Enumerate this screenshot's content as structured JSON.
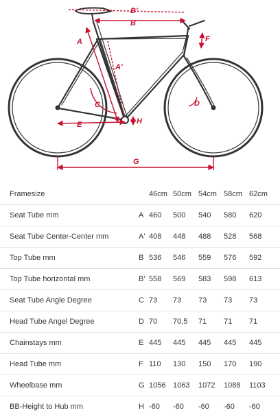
{
  "diagram": {
    "accent_color": "#c8102e",
    "frame_color": "#333333",
    "labels": {
      "A": "A",
      "A_prime": "A'",
      "B": "B",
      "B_prime": "B'",
      "C": "C",
      "D": "D",
      "E": "E",
      "F": "F",
      "G": "G",
      "H": "H"
    }
  },
  "table": {
    "header": {
      "label": "Framesize",
      "sizes": [
        "46cm",
        "50cm",
        "54cm",
        "58cm",
        "62cm"
      ]
    },
    "rows": [
      {
        "label": "Seat Tube mm",
        "code": "A",
        "values": [
          "460",
          "500",
          "540",
          "580",
          "620"
        ]
      },
      {
        "label": "Seat Tube Center-Center mm",
        "code": "A'",
        "values": [
          "408",
          "448",
          "488",
          "528",
          "568"
        ]
      },
      {
        "label": "Top Tube mm",
        "code": "B",
        "values": [
          "536",
          "546",
          "559",
          "576",
          "592"
        ]
      },
      {
        "label": "Top Tube horizontal mm",
        "code": "B'",
        "values": [
          "558",
          "569",
          "583",
          "598",
          "613"
        ]
      },
      {
        "label": "Seat Tube Angle Degree",
        "code": "C",
        "values": [
          "73",
          "73",
          "73",
          "73",
          "73"
        ]
      },
      {
        "label": "Head Tube Angel Degree",
        "code": "D",
        "values": [
          "70",
          "70,5",
          "71",
          "71",
          "71"
        ]
      },
      {
        "label": "Chainstays mm",
        "code": "E",
        "values": [
          "445",
          "445",
          "445",
          "445",
          "445"
        ]
      },
      {
        "label": "Head Tube mm",
        "code": "F",
        "values": [
          "110",
          "130",
          "150",
          "170",
          "190"
        ]
      },
      {
        "label": "Wheelbase mm",
        "code": "G",
        "values": [
          "1056",
          "1063",
          "1072",
          "1088",
          "1103"
        ]
      },
      {
        "label": "BB-Height to Hub mm",
        "code": "H",
        "values": [
          "-60",
          "-60",
          "-60",
          "-60",
          "-60"
        ]
      }
    ]
  }
}
